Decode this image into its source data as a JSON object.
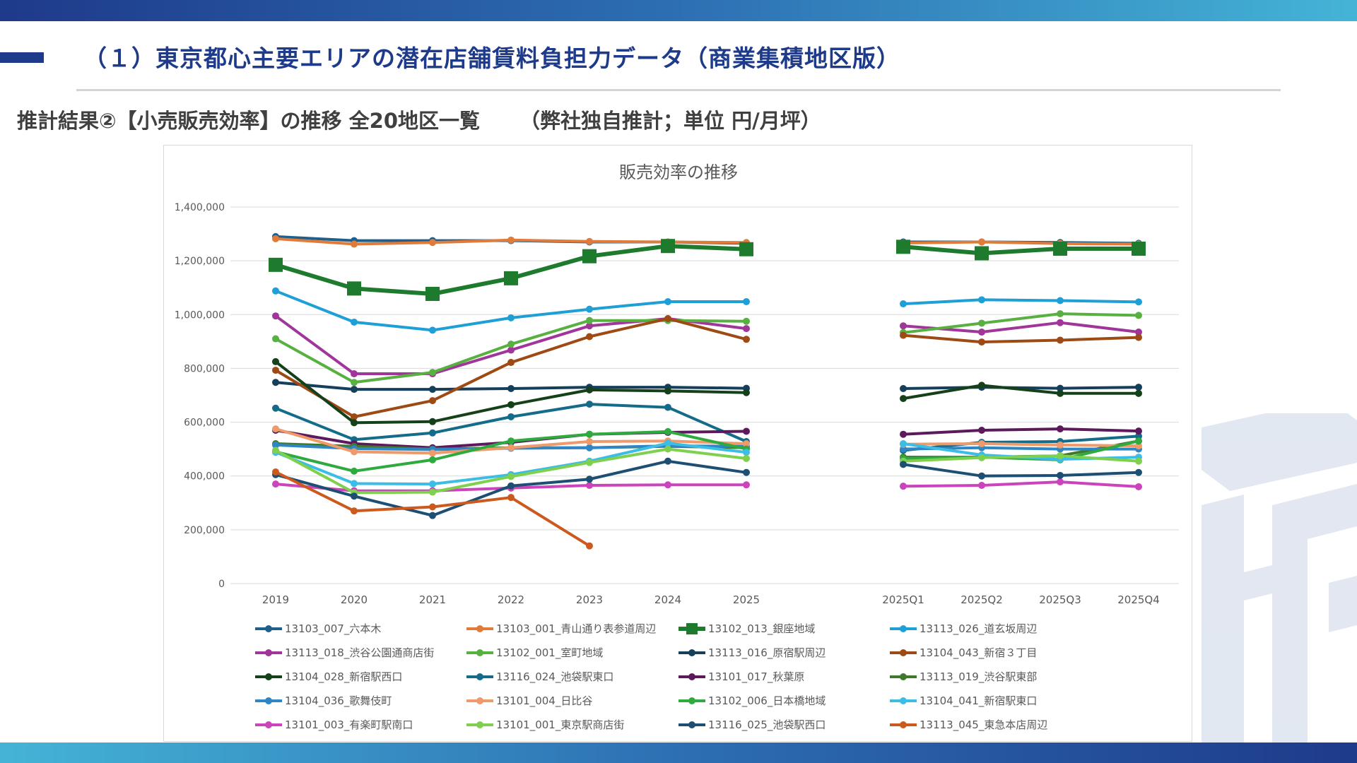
{
  "page": {
    "title": "（１）東京都心主要エリアの潜在店舗賃料負担力データ（商業集積地区版）",
    "subtitle": "推計結果②【小売販売効率】の推移 全20地区一覧",
    "subtitle_unit": "（弊社独自推計；単位 円/月坪）"
  },
  "colors": {
    "brand_dark": "#1e3a8a",
    "brand_light": "#44b4d6",
    "gridline": "#d9d9d9"
  },
  "chart_data": {
    "type": "line",
    "title": "販売効率の推移",
    "xlabel": "",
    "ylabel": "",
    "ylim": [
      0,
      1400000
    ],
    "yticks": [
      0,
      200000,
      400000,
      600000,
      800000,
      1000000,
      1200000,
      1400000
    ],
    "ytick_labels": [
      "0",
      "200,000",
      "400,000",
      "600,000",
      "800,000",
      "1,000,000",
      "1,200,000",
      "1,400,000"
    ],
    "categories": [
      "2019",
      "2020",
      "2021",
      "2022",
      "2023",
      "2024",
      "2025",
      "2025Q1",
      "2025Q2",
      "2025Q3",
      "2025Q4"
    ],
    "gap_after_index": 6,
    "legend_position": "bottom",
    "series": [
      {
        "name": "13103_007_六本木",
        "color": "#1f5f8b",
        "values": [
          1290000,
          1275000,
          1275000,
          1275000,
          1270000,
          1270000,
          1265000,
          1270000,
          1270000,
          1268000,
          1265000
        ]
      },
      {
        "name": "13103_001_青山通り表参道周辺",
        "color": "#e07b39",
        "values": [
          1282000,
          1262000,
          1268000,
          1277000,
          1272000,
          1270000,
          1268000,
          1266000,
          1270000,
          1264000,
          1262000
        ]
      },
      {
        "name": "13102_013_銀座地域",
        "color": "#1e7b2e",
        "thick": true,
        "marker": "square",
        "values": [
          1185000,
          1097000,
          1077000,
          1135000,
          1217000,
          1255000,
          1243000,
          1252000,
          1228000,
          1245000,
          1245000
        ]
      },
      {
        "name": "13113_026_道玄坂周辺",
        "color": "#1e9fd6",
        "values": [
          1088000,
          972000,
          942000,
          988000,
          1020000,
          1048000,
          1048000,
          1040000,
          1055000,
          1052000,
          1047000
        ]
      },
      {
        "name": "13113_018_渋谷公園通商店街",
        "color": "#a0359a",
        "values": [
          995000,
          780000,
          780000,
          868000,
          958000,
          985000,
          948000,
          958000,
          935000,
          970000,
          935000
        ]
      },
      {
        "name": "13102_001_室町地域",
        "color": "#58b040",
        "values": [
          910000,
          748000,
          785000,
          890000,
          978000,
          978000,
          975000,
          933000,
          968000,
          1003000,
          997000
        ]
      },
      {
        "name": "13113_016_原宿駅周辺",
        "color": "#163f5c",
        "values": [
          748000,
          722000,
          722000,
          725000,
          730000,
          730000,
          726000,
          725000,
          730000,
          726000,
          730000
        ]
      },
      {
        "name": "13104_043_新宿３丁目",
        "color": "#9e4a14",
        "values": [
          793000,
          620000,
          680000,
          822000,
          918000,
          985000,
          908000,
          923000,
          898000,
          905000,
          915000
        ]
      },
      {
        "name": "13104_028_新宿駅西口",
        "color": "#14401a",
        "values": [
          825000,
          598000,
          602000,
          665000,
          720000,
          716000,
          710000,
          688000,
          737000,
          707000,
          707000
        ]
      },
      {
        "name": "13116_024_池袋駅東口",
        "color": "#156b8a",
        "values": [
          652000,
          535000,
          560000,
          620000,
          667000,
          655000,
          528000,
          495000,
          525000,
          528000,
          548000
        ]
      },
      {
        "name": "13101_017_秋葉原",
        "color": "#5c1a5c",
        "values": [
          570000,
          520000,
          505000,
          525000,
          555000,
          562000,
          566000,
          555000,
          570000,
          575000,
          567000
        ]
      },
      {
        "name": "13113_019_渋谷駅東部",
        "color": "#3f7a2a",
        "values": [
          520000,
          510000,
          500000,
          505000,
          505000,
          510000,
          505000,
          470000,
          470000,
          475000,
          530000
        ]
      },
      {
        "name": "13104_036_歌舞伎町",
        "color": "#2f86c4",
        "values": [
          515000,
          502000,
          498000,
          503000,
          505000,
          512000,
          510000,
          500000,
          505000,
          500000,
          500000
        ]
      },
      {
        "name": "13101_004_日比谷",
        "color": "#ee9a6a",
        "values": [
          575000,
          490000,
          485000,
          505000,
          528000,
          530000,
          520000,
          518000,
          520000,
          515000,
          512000
        ]
      },
      {
        "name": "13102_006_日本橋地域",
        "color": "#2eaa3e",
        "values": [
          490000,
          418000,
          460000,
          530000,
          555000,
          565000,
          500000,
          465000,
          470000,
          460000,
          530000
        ]
      },
      {
        "name": "13104_041_新宿駅東口",
        "color": "#3bbde6",
        "values": [
          488000,
          372000,
          370000,
          405000,
          455000,
          522000,
          488000,
          520000,
          478000,
          462000,
          470000
        ]
      },
      {
        "name": "13101_003_有楽町駅南口",
        "color": "#cc44bb",
        "values": [
          370000,
          345000,
          345000,
          355000,
          365000,
          367000,
          367000,
          362000,
          365000,
          378000,
          360000
        ]
      },
      {
        "name": "13101_001_東京駅商店街",
        "color": "#7ed04e",
        "values": [
          495000,
          338000,
          340000,
          398000,
          450000,
          500000,
          465000,
          455000,
          468000,
          475000,
          455000
        ]
      },
      {
        "name": "13116_025_池袋駅西口",
        "color": "#1d4f73",
        "values": [
          405000,
          325000,
          253000,
          363000,
          388000,
          455000,
          413000,
          443000,
          400000,
          402000,
          413000
        ]
      },
      {
        "name": "13113_045_東急本店周辺",
        "color": "#cc5a1e",
        "values": [
          415000,
          270000,
          285000,
          320000,
          140000,
          null,
          null,
          null,
          null,
          null,
          null
        ]
      }
    ]
  }
}
